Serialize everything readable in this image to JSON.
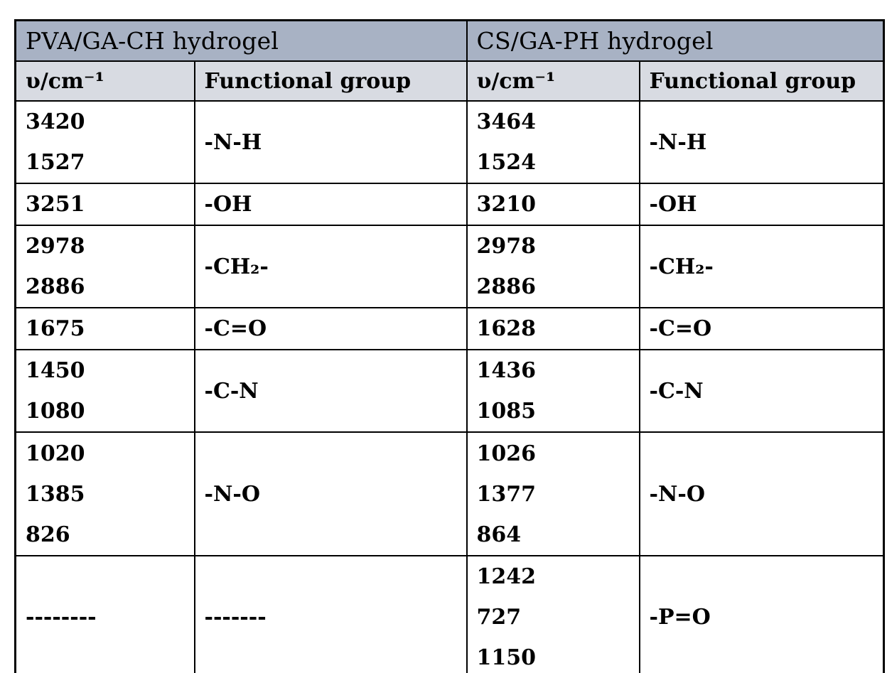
{
  "colors": {
    "page_bg": "#ffffff",
    "section_header_bg": "#a8b2c4",
    "column_header_bg": "#d8dbe2",
    "border": "#000000",
    "text": "#000000"
  },
  "table": {
    "sections": [
      {
        "title": "PVA/GA-CH hydrogel",
        "columns": {
          "freq": "υ/cm⁻¹",
          "group": "Functional group"
        }
      },
      {
        "title": "CS/GA-PH hydrogel",
        "columns": {
          "freq": "υ/cm⁻¹",
          "group": "Functional group"
        }
      }
    ],
    "rows": [
      {
        "left": {
          "freqs": [
            "3420",
            "1527"
          ],
          "group": "-N-H"
        },
        "right": {
          "freqs": [
            "3464",
            "1524"
          ],
          "group": "-N-H"
        }
      },
      {
        "left": {
          "freqs": [
            "3251"
          ],
          "group": "-OH"
        },
        "right": {
          "freqs": [
            "3210"
          ],
          "group": "-OH"
        }
      },
      {
        "left": {
          "freqs": [
            "2978",
            "2886"
          ],
          "group": "-CH₂-"
        },
        "right": {
          "freqs": [
            "2978",
            "2886"
          ],
          "group": "-CH₂-"
        }
      },
      {
        "left": {
          "freqs": [
            "1675"
          ],
          "group": "-C=O"
        },
        "right": {
          "freqs": [
            "1628"
          ],
          "group": "-C=O"
        }
      },
      {
        "left": {
          "freqs": [
            "1450",
            "1080"
          ],
          "group": "-C-N"
        },
        "right": {
          "freqs": [
            "1436",
            "1085"
          ],
          "group": "-C-N"
        }
      },
      {
        "left": {
          "freqs": [
            "1020",
            "1385",
            "826"
          ],
          "group": "-N-O"
        },
        "right": {
          "freqs": [
            "1026",
            "1377",
            "864"
          ],
          "group": "-N-O"
        }
      },
      {
        "left": {
          "freqs": [
            "--------"
          ],
          "group": "-------"
        },
        "right": {
          "freqs": [
            "1242",
            "727",
            "1150"
          ],
          "group": "-P=O"
        }
      }
    ]
  },
  "chart_data": {
    "type": "table",
    "sections": [
      {
        "name": "PVA/GA-CH hydrogel",
        "column_headers": [
          "υ/cm⁻¹",
          "Functional group"
        ],
        "bands": [
          {
            "wavenumbers": [
              "3420",
              "1527"
            ],
            "functional_group": "-N-H"
          },
          {
            "wavenumbers": [
              "3251"
            ],
            "functional_group": "-OH"
          },
          {
            "wavenumbers": [
              "2978",
              "2886"
            ],
            "functional_group": "-CH₂-"
          },
          {
            "wavenumbers": [
              "1675"
            ],
            "functional_group": "-C=O"
          },
          {
            "wavenumbers": [
              "1450",
              "1080"
            ],
            "functional_group": "-C-N"
          },
          {
            "wavenumbers": [
              "1020",
              "1385",
              "826"
            ],
            "functional_group": "-N-O"
          },
          {
            "wavenumbers": [
              "--------"
            ],
            "functional_group": "-------"
          }
        ]
      },
      {
        "name": "CS/GA-PH hydrogel",
        "column_headers": [
          "υ/cm⁻¹",
          "Functional group"
        ],
        "bands": [
          {
            "wavenumbers": [
              "3464",
              "1524"
            ],
            "functional_group": "-N-H"
          },
          {
            "wavenumbers": [
              "3210"
            ],
            "functional_group": "-OH"
          },
          {
            "wavenumbers": [
              "2978",
              "2886"
            ],
            "functional_group": "-CH₂-"
          },
          {
            "wavenumbers": [
              "1628"
            ],
            "functional_group": "-C=O"
          },
          {
            "wavenumbers": [
              "1436",
              "1085"
            ],
            "functional_group": "-C-N"
          },
          {
            "wavenumbers": [
              "1026",
              "1377",
              "864"
            ],
            "functional_group": "-N-O"
          },
          {
            "wavenumbers": [
              "1242",
              "727",
              "1150"
            ],
            "functional_group": "-P=O"
          }
        ]
      }
    ]
  }
}
